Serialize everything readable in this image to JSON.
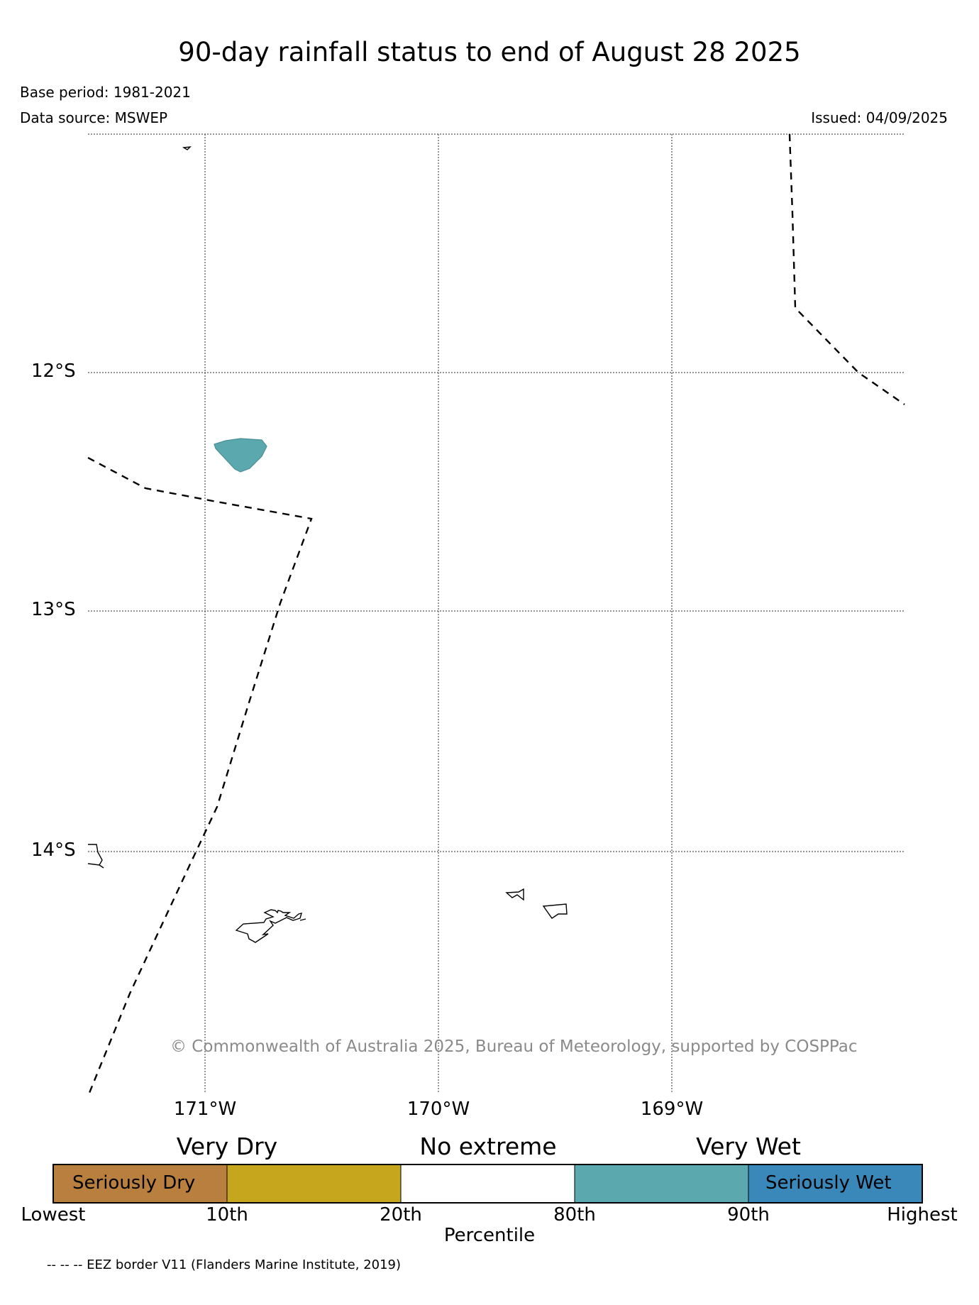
{
  "header": {
    "title": "90-day rainfall status to end of August 28 2025",
    "base_period": "Base period: 1981-2021",
    "data_source": "Data source: MSWEP",
    "issued": "Issued: 04/09/2025"
  },
  "map": {
    "latitude_labels": [
      "12°S",
      "13°S",
      "14°S"
    ],
    "longitude_labels": [
      "171°W",
      "170°W",
      "169°W"
    ],
    "gridlines": "dotted",
    "eez_border_style": "dashed",
    "highlight_colour": "#5ba8ae",
    "copyright": "© Commonwealth of Australia 2025, Bureau of Meteorology, supported by COSPPac"
  },
  "legend": {
    "categories": {
      "very_dry": "Very Dry",
      "no_extreme": "No extreme",
      "very_wet": "Very Wet"
    },
    "bands": [
      {
        "label": "Seriously Dry",
        "color": "#b97f3f"
      },
      {
        "label": "",
        "color": "#c5a61d"
      },
      {
        "label": "",
        "color": "#ffffff"
      },
      {
        "label": "",
        "color": "#5ba8ae"
      },
      {
        "label": "Seriously Wet",
        "color": "#3a87ba"
      }
    ],
    "ticks": [
      "Lowest",
      "10th",
      "20th",
      "80th",
      "90th",
      "Highest"
    ],
    "axis_label": "Percentile",
    "footnote": "-- -- -- EEZ border V11 (Flanders Marine Institute, 2019)"
  }
}
